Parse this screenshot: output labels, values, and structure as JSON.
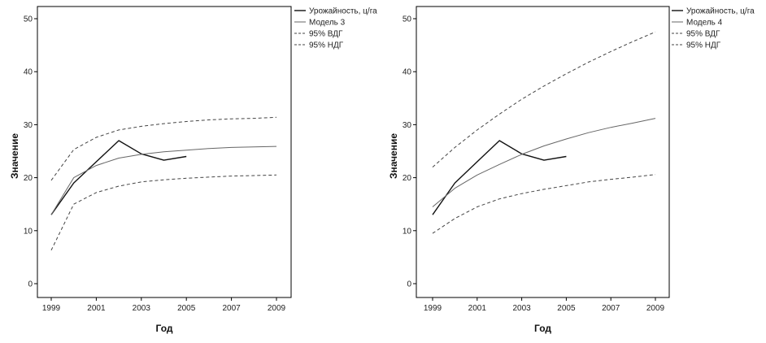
{
  "chart_data": [
    {
      "type": "line",
      "xlabel": "Год",
      "ylabel": "Значение",
      "xlim": [
        1999,
        2009
      ],
      "ylim": [
        0,
        50
      ],
      "x_ticks": [
        "1999",
        "2001",
        "2003",
        "2005",
        "2007",
        "2009"
      ],
      "y_ticks": [
        "0",
        "10",
        "20",
        "30",
        "40",
        "50"
      ],
      "grid": false,
      "legend_position": "top-right",
      "series": [
        {
          "name": "Урожайность, ц/га",
          "style": "solid",
          "color": "#111111",
          "width": 1.4,
          "x": [
            1999,
            2000,
            2001,
            2002,
            2003,
            2004,
            2005
          ],
          "y": [
            13.0,
            19.0,
            23.0,
            27.0,
            24.5,
            23.3,
            24.0
          ]
        },
        {
          "name": "Модель 3",
          "style": "solid",
          "color": "#666666",
          "width": 1.0,
          "x": [
            1999,
            2000,
            2001,
            2002,
            2003,
            2004,
            2005,
            2006,
            2007,
            2008,
            2009
          ],
          "y": [
            13.0,
            20.0,
            22.3,
            23.7,
            24.4,
            24.9,
            25.2,
            25.5,
            25.7,
            25.8,
            25.9
          ]
        },
        {
          "name": "95% ВДГ",
          "style": "dashed",
          "color": "#444444",
          "width": 1.0,
          "x": [
            1999,
            2000,
            2001,
            2002,
            2003,
            2004,
            2005,
            2006,
            2007,
            2008,
            2009
          ],
          "y": [
            19.5,
            25.3,
            27.6,
            29.0,
            29.7,
            30.2,
            30.6,
            30.9,
            31.1,
            31.2,
            31.4
          ]
        },
        {
          "name": "95% НДГ",
          "style": "dashed",
          "color": "#444444",
          "width": 1.0,
          "x": [
            1999,
            2000,
            2001,
            2002,
            2003,
            2004,
            2005,
            2006,
            2007,
            2008,
            2009
          ],
          "y": [
            6.3,
            15.0,
            17.2,
            18.4,
            19.2,
            19.6,
            19.9,
            20.1,
            20.3,
            20.4,
            20.5
          ]
        }
      ]
    },
    {
      "type": "line",
      "xlabel": "Год",
      "ylabel": "Значение",
      "xlim": [
        1999,
        2009
      ],
      "ylim": [
        0,
        50
      ],
      "x_ticks": [
        "1999",
        "2001",
        "2003",
        "2005",
        "2007",
        "2009"
      ],
      "y_ticks": [
        "0",
        "10",
        "20",
        "30",
        "40",
        "50"
      ],
      "grid": false,
      "legend_position": "top-right",
      "series": [
        {
          "name": "Урожайность, ц/га",
          "style": "solid",
          "color": "#111111",
          "width": 1.4,
          "x": [
            1999,
            2000,
            2001,
            2002,
            2003,
            2004,
            2005
          ],
          "y": [
            13.0,
            19.0,
            23.0,
            27.0,
            24.5,
            23.3,
            24.0
          ]
        },
        {
          "name": "Модель 4",
          "style": "solid",
          "color": "#666666",
          "width": 1.0,
          "x": [
            1999,
            2000,
            2001,
            2002,
            2003,
            2004,
            2005,
            2006,
            2007,
            2008,
            2009
          ],
          "y": [
            14.5,
            18.0,
            20.5,
            22.5,
            24.4,
            26.0,
            27.3,
            28.5,
            29.5,
            30.3,
            31.2
          ]
        },
        {
          "name": "95% ВДГ",
          "style": "dashed",
          "color": "#444444",
          "width": 1.0,
          "x": [
            1999,
            2000,
            2001,
            2002,
            2003,
            2004,
            2005,
            2006,
            2007,
            2008,
            2009
          ],
          "y": [
            22.0,
            25.7,
            29.0,
            32.0,
            34.8,
            37.3,
            39.6,
            41.8,
            43.8,
            45.7,
            47.5
          ]
        },
        {
          "name": "95% НДГ",
          "style": "dashed",
          "color": "#444444",
          "width": 1.0,
          "x": [
            1999,
            2000,
            2001,
            2002,
            2003,
            2004,
            2005,
            2006,
            2007,
            2008,
            2009
          ],
          "y": [
            9.5,
            12.3,
            14.5,
            16.0,
            17.0,
            17.8,
            18.5,
            19.2,
            19.7,
            20.1,
            20.6
          ]
        }
      ]
    }
  ]
}
